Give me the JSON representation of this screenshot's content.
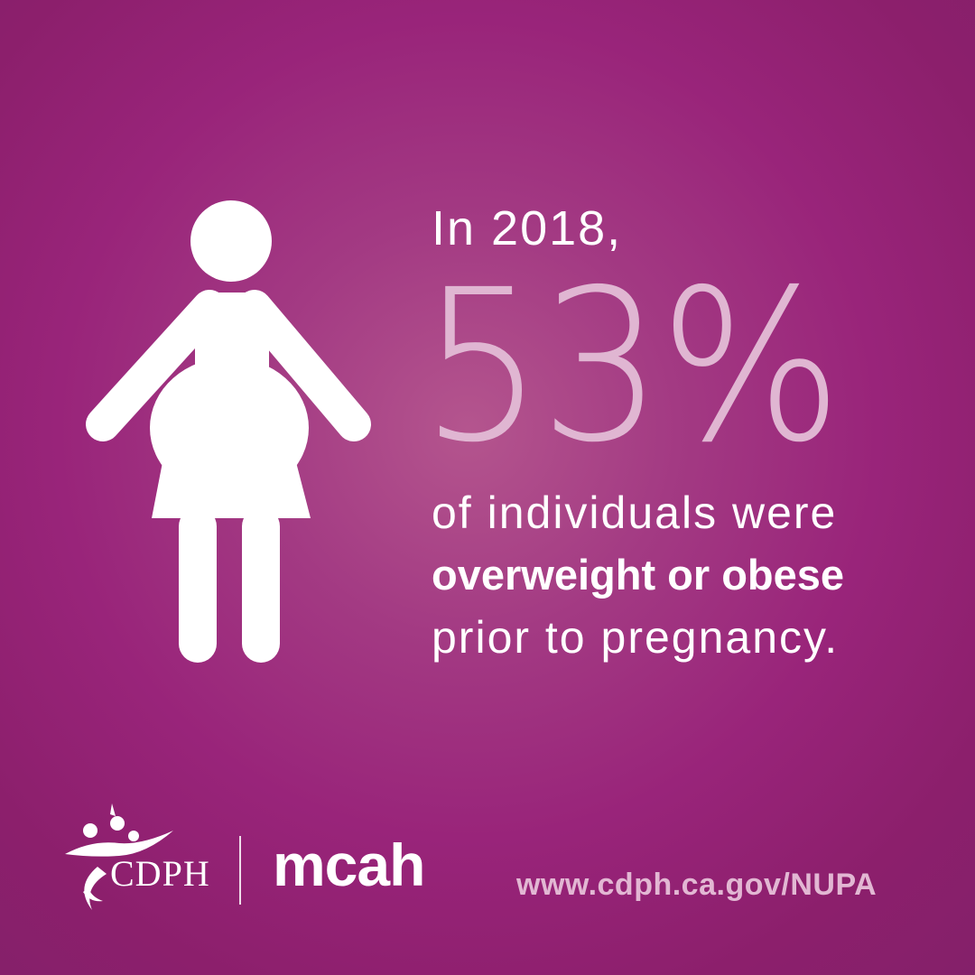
{
  "headline": {
    "intro": "In 2018,",
    "stat": "53%",
    "line1": "of individuals were",
    "line2_bold": "overweight or obese",
    "line3": "prior to pregnancy."
  },
  "footer": {
    "cdph_logo_text": "CDPH",
    "mcah_logo_text": "mcah",
    "url": "www.cdph.ca.gov/NUPA"
  },
  "colors": {
    "background": "#99247a",
    "stat": "#e0b6d2",
    "url": "#e2b7d3",
    "text": "#ffffff"
  },
  "icons": {
    "figure": "pregnant-person-icon",
    "logo": "cdph-logo"
  }
}
